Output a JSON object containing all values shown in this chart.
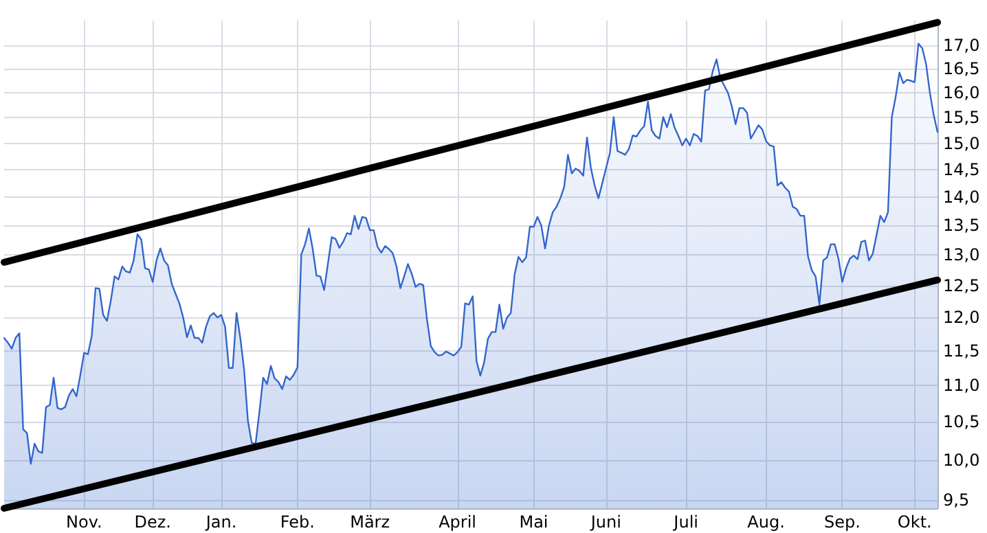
{
  "chart_data": {
    "type": "area",
    "log": "y",
    "grid": true,
    "ylim": [
      9.4,
      17.55
    ],
    "categories": [
      null,
      null,
      null,
      null,
      null,
      null,
      null,
      null,
      null,
      null,
      null,
      null,
      null,
      null,
      null,
      null,
      null,
      null,
      null,
      null,
      null,
      "Nov.",
      null,
      null,
      null,
      null,
      null,
      null,
      null,
      null,
      null,
      null,
      null,
      null,
      null,
      null,
      null,
      null,
      null,
      "Dez.",
      null,
      null,
      null,
      null,
      null,
      null,
      null,
      null,
      null,
      null,
      null,
      null,
      null,
      null,
      null,
      null,
      null,
      "Jan.",
      null,
      null,
      null,
      null,
      null,
      null,
      null,
      null,
      null,
      null,
      null,
      null,
      null,
      null,
      null,
      null,
      null,
      null,
      null,
      "Feb.",
      null,
      null,
      null,
      null,
      null,
      null,
      null,
      null,
      null,
      null,
      null,
      null,
      null,
      null,
      null,
      null,
      null,
      null,
      "März",
      null,
      null,
      null,
      null,
      null,
      null,
      null,
      null,
      null,
      null,
      null,
      null,
      null,
      null,
      null,
      null,
      null,
      null,
      null,
      null,
      null,
      null,
      "April",
      null,
      null,
      null,
      null,
      null,
      null,
      null,
      null,
      null,
      null,
      null,
      null,
      null,
      null,
      null,
      null,
      null,
      null,
      null,
      "Mai",
      null,
      null,
      null,
      null,
      null,
      null,
      null,
      null,
      null,
      null,
      null,
      null,
      null,
      null,
      null,
      null,
      null,
      null,
      "Juni",
      null,
      null,
      null,
      null,
      null,
      null,
      null,
      null,
      null,
      null,
      null,
      null,
      null,
      null,
      null,
      null,
      null,
      null,
      null,
      null,
      "Juli",
      null,
      null,
      null,
      null,
      null,
      null,
      null,
      null,
      null,
      null,
      null,
      null,
      null,
      null,
      null,
      null,
      null,
      null,
      null,
      null,
      "Aug.",
      null,
      null,
      null,
      null,
      null,
      null,
      null,
      null,
      null,
      null,
      null,
      null,
      null,
      null,
      null,
      null,
      null,
      null,
      null,
      "Sep.",
      null,
      null,
      null,
      null,
      null,
      null,
      null,
      null,
      null,
      null,
      null,
      null,
      null,
      null,
      null,
      null,
      null,
      null,
      "Okt.",
      null,
      null,
      null,
      null,
      null,
      null
    ],
    "yticks": [
      {
        "value": 9.5,
        "label": "9,5"
      },
      {
        "value": 10,
        "label": "10,0"
      },
      {
        "value": 10.5,
        "label": "10,5"
      },
      {
        "value": 11,
        "label": "11,0"
      },
      {
        "value": 11.5,
        "label": "11,5"
      },
      {
        "value": 12,
        "label": "12,0"
      },
      {
        "value": 12.5,
        "label": "12,5"
      },
      {
        "value": 13,
        "label": "13,0"
      },
      {
        "value": 13.5,
        "label": "13,5"
      },
      {
        "value": 14,
        "label": "14,0"
      },
      {
        "value": 14.5,
        "label": "14,5"
      },
      {
        "value": 15,
        "label": "15,0"
      },
      {
        "value": 15.5,
        "label": "15,5"
      },
      {
        "value": 16,
        "label": "16,0"
      },
      {
        "value": 16.5,
        "label": "16,5"
      },
      {
        "value": 17,
        "label": "17,0"
      }
    ],
    "series": [
      {
        "color": "#3366cc",
        "values": [
          11.69,
          11.62,
          11.53,
          11.69,
          11.76,
          10.4,
          10.35,
          9.95,
          10.21,
          10.11,
          10.09,
          10.7,
          10.73,
          11.11,
          10.69,
          10.67,
          10.7,
          10.86,
          10.95,
          10.85,
          11.15,
          11.47,
          11.45,
          11.72,
          12.46,
          12.45,
          12.04,
          11.95,
          12.26,
          12.65,
          12.6,
          12.81,
          12.73,
          12.71,
          12.91,
          13.35,
          13.26,
          12.78,
          12.76,
          12.56,
          12.91,
          13.11,
          12.91,
          12.83,
          12.53,
          12.37,
          12.22,
          12.0,
          11.7,
          11.88,
          11.69,
          11.69,
          11.62,
          11.86,
          12.02,
          12.07,
          12.0,
          12.04,
          11.86,
          11.25,
          11.25,
          12.07,
          11.69,
          11.22,
          10.51,
          10.22,
          10.21,
          10.63,
          11.11,
          11.02,
          11.28,
          11.1,
          11.05,
          10.95,
          11.13,
          11.08,
          11.15,
          11.26,
          13.01,
          13.18,
          13.45,
          13.1,
          12.66,
          12.65,
          12.43,
          12.86,
          13.3,
          13.27,
          13.12,
          13.22,
          13.37,
          13.35,
          13.67,
          13.44,
          13.65,
          13.63,
          13.42,
          13.42,
          13.14,
          13.04,
          13.15,
          13.1,
          13.03,
          12.81,
          12.46,
          12.65,
          12.85,
          12.69,
          12.48,
          12.53,
          12.51,
          11.97,
          11.57,
          11.48,
          11.43,
          11.44,
          11.49,
          11.46,
          11.43,
          11.48,
          11.56,
          12.22,
          12.2,
          12.33,
          11.35,
          11.14,
          11.33,
          11.68,
          11.78,
          11.78,
          12.2,
          11.83,
          12.0,
          12.07,
          12.68,
          12.97,
          12.88,
          12.96,
          13.48,
          13.48,
          13.65,
          13.5,
          13.11,
          13.5,
          13.73,
          13.83,
          13.98,
          14.18,
          14.78,
          14.43,
          14.52,
          14.48,
          14.39,
          15.11,
          14.54,
          14.21,
          13.98,
          14.25,
          14.53,
          14.81,
          15.51,
          14.85,
          14.82,
          14.78,
          14.89,
          15.15,
          15.13,
          15.25,
          15.33,
          15.82,
          15.25,
          15.14,
          15.09,
          15.51,
          15.31,
          15.57,
          15.3,
          15.14,
          14.96,
          15.09,
          14.96,
          15.18,
          15.14,
          15.03,
          16.05,
          16.07,
          16.45,
          16.7,
          16.3,
          16.15,
          16.0,
          15.73,
          15.37,
          15.69,
          15.69,
          15.6,
          15.09,
          15.22,
          15.35,
          15.27,
          15.04,
          14.96,
          14.94,
          14.21,
          14.27,
          14.17,
          14.1,
          13.83,
          13.79,
          13.67,
          13.67,
          12.98,
          12.75,
          12.65,
          12.2,
          12.91,
          12.96,
          13.18,
          13.18,
          12.94,
          12.56,
          12.78,
          12.94,
          12.99,
          12.93,
          13.22,
          13.24,
          12.91,
          13.02,
          13.34,
          13.67,
          13.56,
          13.73,
          15.51,
          15.91,
          16.42,
          16.2,
          16.27,
          16.25,
          16.22,
          17.04,
          16.94,
          16.6,
          16.0,
          15.55,
          15.22
        ]
      },
      {
        "type": "line",
        "color": "#000000",
        "values": [
          12.88,
          null,
          null,
          null,
          null,
          null,
          null,
          null,
          null,
          null,
          null,
          null,
          null,
          null,
          null,
          null,
          null,
          null,
          null,
          null,
          null,
          null,
          null,
          null,
          null,
          null,
          null,
          null,
          null,
          null,
          null,
          null,
          null,
          null,
          null,
          null,
          null,
          null,
          null,
          null,
          null,
          null,
          null,
          null,
          null,
          null,
          null,
          null,
          null,
          null,
          null,
          null,
          null,
          null,
          null,
          null,
          null,
          null,
          null,
          null,
          null,
          null,
          null,
          null,
          null,
          null,
          null,
          null,
          null,
          null,
          null,
          null,
          null,
          null,
          null,
          null,
          null,
          null,
          null,
          null,
          null,
          null,
          null,
          null,
          null,
          null,
          null,
          null,
          null,
          null,
          null,
          null,
          null,
          null,
          null,
          null,
          null,
          null,
          null,
          null,
          null,
          null,
          null,
          null,
          null,
          null,
          null,
          null,
          null,
          null,
          null,
          null,
          null,
          null,
          null,
          null,
          null,
          null,
          null,
          null,
          null,
          null,
          null,
          null,
          null,
          null,
          null,
          null,
          null,
          null,
          null,
          null,
          null,
          null,
          null,
          null,
          null,
          null,
          null,
          null,
          null,
          null,
          null,
          null,
          null,
          null,
          null,
          null,
          null,
          null,
          null,
          null,
          null,
          null,
          null,
          null,
          null,
          null,
          null,
          null,
          null,
          null,
          null,
          null,
          null,
          null,
          null,
          null,
          null,
          null,
          null,
          null,
          null,
          null,
          null,
          null,
          null,
          null,
          null,
          null,
          null,
          null,
          null,
          null,
          null,
          null,
          null,
          null,
          null,
          null,
          null,
          null,
          null,
          null,
          null,
          null,
          null,
          null,
          null,
          null,
          null,
          null,
          null,
          null,
          null,
          null,
          null,
          null,
          null,
          null,
          null,
          null,
          null,
          null,
          null,
          null,
          null,
          null,
          null,
          null,
          null,
          null,
          null,
          null,
          null,
          null,
          null,
          null,
          null,
          null,
          null,
          null,
          null,
          null,
          null,
          null,
          null,
          null,
          null,
          null,
          null,
          null,
          null,
          null,
          null,
          17.51
        ]
      },
      {
        "type": "line",
        "color": "#000000",
        "values": [
          9.4,
          null,
          null,
          null,
          null,
          null,
          null,
          null,
          null,
          null,
          null,
          null,
          null,
          null,
          null,
          null,
          null,
          null,
          null,
          null,
          null,
          null,
          null,
          null,
          null,
          null,
          null,
          null,
          null,
          null,
          null,
          null,
          null,
          null,
          null,
          null,
          null,
          null,
          null,
          null,
          null,
          null,
          null,
          null,
          null,
          null,
          null,
          null,
          null,
          null,
          null,
          null,
          null,
          null,
          null,
          null,
          null,
          null,
          null,
          null,
          null,
          null,
          null,
          null,
          null,
          null,
          null,
          null,
          null,
          null,
          null,
          null,
          null,
          null,
          null,
          null,
          null,
          null,
          null,
          null,
          null,
          null,
          null,
          null,
          null,
          null,
          null,
          null,
          null,
          null,
          null,
          null,
          null,
          null,
          null,
          null,
          null,
          null,
          null,
          null,
          null,
          null,
          null,
          null,
          null,
          null,
          null,
          null,
          null,
          null,
          null,
          null,
          null,
          null,
          null,
          null,
          null,
          null,
          null,
          null,
          null,
          null,
          null,
          null,
          null,
          null,
          null,
          null,
          null,
          null,
          null,
          null,
          null,
          null,
          null,
          null,
          null,
          null,
          null,
          null,
          null,
          null,
          null,
          null,
          null,
          null,
          null,
          null,
          null,
          null,
          null,
          null,
          null,
          null,
          null,
          null,
          null,
          null,
          null,
          null,
          null,
          null,
          null,
          null,
          null,
          null,
          null,
          null,
          null,
          null,
          null,
          null,
          null,
          null,
          null,
          null,
          null,
          null,
          null,
          null,
          null,
          null,
          null,
          null,
          null,
          null,
          null,
          null,
          null,
          null,
          null,
          null,
          null,
          null,
          null,
          null,
          null,
          null,
          null,
          null,
          null,
          null,
          null,
          null,
          null,
          null,
          null,
          null,
          null,
          null,
          null,
          null,
          null,
          null,
          null,
          null,
          null,
          null,
          null,
          null,
          null,
          null,
          null,
          null,
          null,
          null,
          null,
          null,
          null,
          null,
          null,
          null,
          null,
          null,
          null,
          null,
          null,
          null,
          null,
          null,
          null,
          null,
          null,
          null,
          null,
          12.59
        ]
      }
    ]
  }
}
